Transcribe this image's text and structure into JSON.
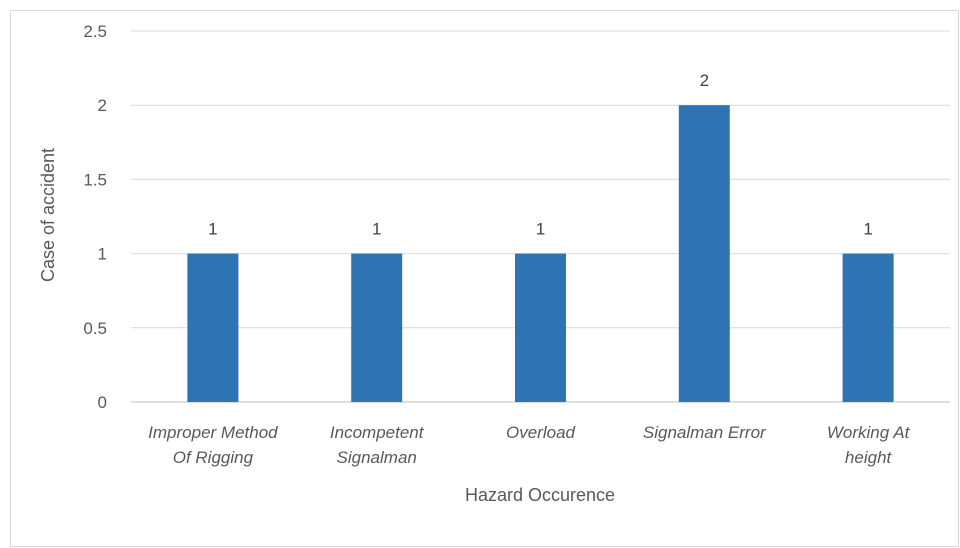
{
  "chart_data": {
    "type": "bar",
    "title": "",
    "xlabel": "Hazard Occurence",
    "ylabel": "Case of accident",
    "categories": [
      [
        "Improper Method",
        "Of Rigging"
      ],
      [
        "Incompetent",
        "Signalman"
      ],
      [
        "Overload"
      ],
      [
        "Signalman Error"
      ],
      [
        "Working At",
        "height"
      ]
    ],
    "values": [
      1,
      1,
      1,
      2,
      1
    ],
    "data_labels": [
      "1",
      "1",
      "1",
      "2",
      "1"
    ],
    "yticks": [
      "0",
      "0.5",
      "1",
      "1.5",
      "2",
      "2.5"
    ],
    "ytick_values": [
      0,
      0.5,
      1,
      1.5,
      2,
      2.5
    ],
    "ylim": [
      0,
      2.5
    ],
    "grid": true,
    "legend": "none",
    "colors": {
      "bar": "#2e74b5",
      "grid": "#d9d9d9",
      "axis": "#bfbfbf"
    }
  }
}
